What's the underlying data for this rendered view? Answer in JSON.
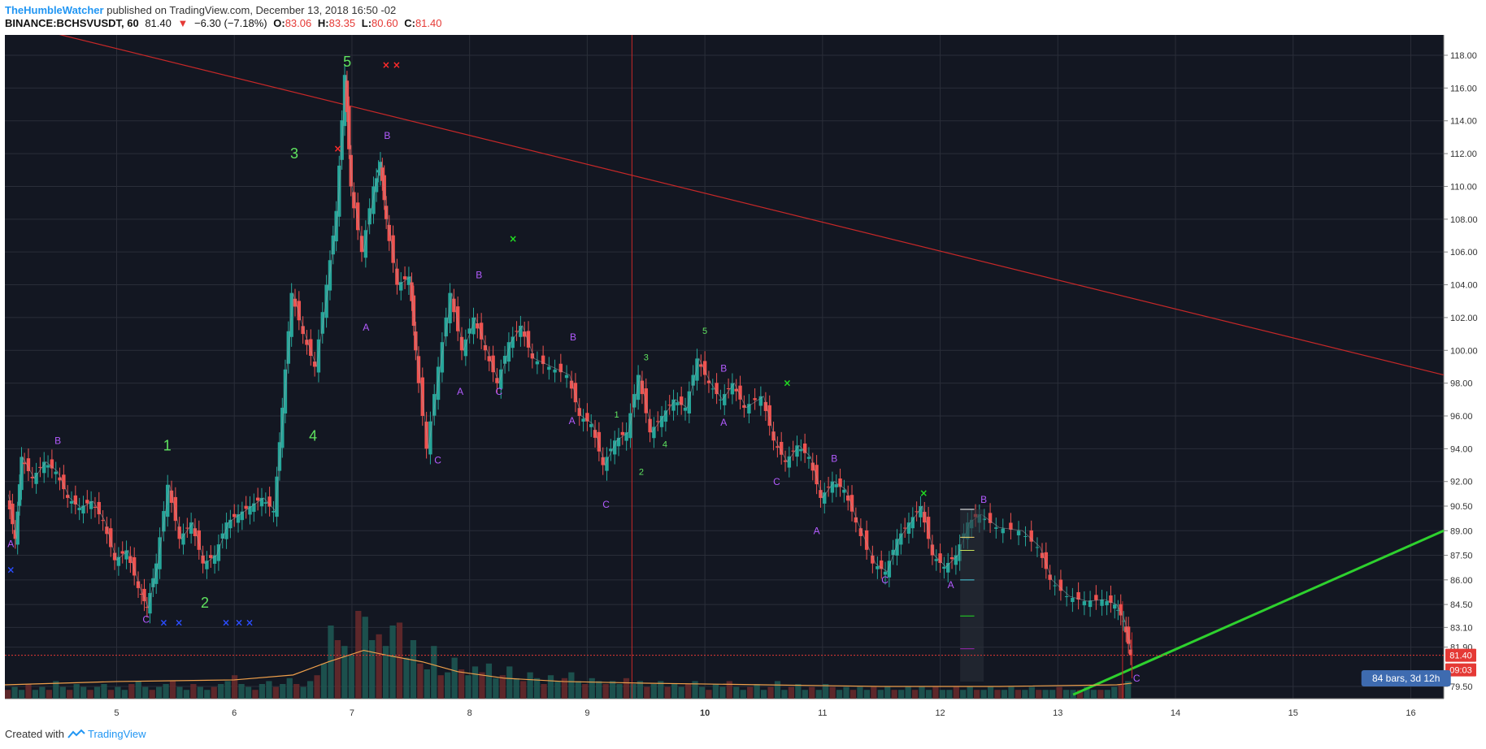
{
  "header": {
    "author": "TheHumbleWatcher",
    "published_text": "published on TradingView.com, December 13, 2018 16:50 -02",
    "symbol": "BINANCE:BCHSVUSDT, 60",
    "last": "81.40",
    "change_arrow": "▼",
    "change": "−6.30 (−7.18%)",
    "o_label": "O:",
    "o_value": "83.06",
    "h_label": "H:",
    "h_value": "83.35",
    "l_label": "L:",
    "l_value": "80.60",
    "c_label": "C:",
    "c_value": "81.40"
  },
  "footer": {
    "created_with": "Created with",
    "brand": "TradingView"
  },
  "chart_data": {
    "type": "candlestick",
    "colors": {
      "background": "#131722",
      "grid": "#2a2e39",
      "up": "#26a69a",
      "down": "#ef5350",
      "ma": "#f0a04b",
      "trendline_down": "#c62828",
      "trendline_up": "#2ed12e",
      "wave_purple": "#b35bff",
      "wave_green": "#5fe35f",
      "cross_red": "#ff2b2b",
      "cross_blue": "#2b4dff",
      "cross_green": "#22dd22",
      "label_bg": "#e53935",
      "range_badge": "#3e6bb0"
    },
    "y_axis": {
      "ticks": [
        "118.00",
        "116.00",
        "114.00",
        "112.00",
        "110.00",
        "108.00",
        "106.00",
        "104.00",
        "102.00",
        "100.00",
        "98.00",
        "96.00",
        "94.00",
        "92.00",
        "90.50",
        "89.00",
        "87.50",
        "86.00",
        "84.50",
        "83.10",
        "81.90",
        "79.50"
      ]
    },
    "x_axis": {
      "ticks": [
        "5",
        "6",
        "7",
        "8",
        "9",
        "10",
        "11",
        "12",
        "13",
        "14",
        "15",
        "16"
      ],
      "bold": [
        "10"
      ]
    },
    "last_price_label": "81.40",
    "countdown_label": "09:03",
    "range_badge": "84 bars, 3d 12h",
    "price_path": [
      [
        "4.08",
        91.2
      ],
      [
        "4.15",
        88.5
      ],
      [
        "4.2",
        93.5
      ],
      [
        "4.3",
        92.2
      ],
      [
        "4.4",
        93.2
      ],
      [
        "4.5",
        92.6
      ],
      [
        "4.6",
        91.0
      ],
      [
        "4.7",
        90.4
      ],
      [
        "4.8",
        90.8
      ],
      [
        "4.9",
        89.6
      ],
      [
        "5.0",
        87.2
      ],
      [
        "5.1",
        87.8
      ],
      [
        "5.2",
        85.5
      ],
      [
        "5.27",
        84.3
      ],
      [
        "5.35",
        87.0
      ],
      [
        "5.45",
        91.8
      ],
      [
        "5.55",
        88.5
      ],
      [
        "5.65",
        89.5
      ],
      [
        "5.75",
        87.0
      ],
      [
        "5.85",
        87.5
      ],
      [
        "5.95",
        89.5
      ],
      [
        "6.05",
        90.0
      ],
      [
        "6.15",
        90.5
      ],
      [
        "6.25",
        91.0
      ],
      [
        "6.35",
        90.2
      ],
      [
        "6.42",
        96.5
      ],
      [
        "6.5",
        103.5
      ],
      [
        "6.6",
        101.0
      ],
      [
        "6.7",
        99.0
      ],
      [
        "6.8",
        104.0
      ],
      [
        "6.88",
        108.5
      ],
      [
        "6.95",
        116.8
      ],
      [
        "7.0",
        110.0
      ],
      [
        "7.1",
        106.0
      ],
      [
        "7.2",
        110.0
      ],
      [
        "7.25",
        111.5
      ],
      [
        "7.3",
        108.0
      ],
      [
        "7.4",
        104.0
      ],
      [
        "7.5",
        104.5
      ],
      [
        "7.55",
        100.0
      ],
      [
        "7.65",
        94.0
      ],
      [
        "7.75",
        99.0
      ],
      [
        "7.85",
        103.5
      ],
      [
        "7.95",
        100.0
      ],
      [
        "8.05",
        102.0
      ],
      [
        "8.15",
        100.0
      ],
      [
        "8.25",
        98.0
      ],
      [
        "8.35",
        100.5
      ],
      [
        "8.45",
        101.5
      ],
      [
        "8.55",
        99.5
      ],
      [
        "8.7",
        99.0
      ],
      [
        "8.85",
        98.5
      ],
      [
        "8.95",
        96.0
      ],
      [
        "9.05",
        95.5
      ],
      [
        "9.15",
        93.0
      ],
      [
        "9.25",
        94.5
      ],
      [
        "9.35",
        95.0
      ],
      [
        "9.45",
        98.5
      ],
      [
        "9.55",
        95.0
      ],
      [
        "9.65",
        96.0
      ],
      [
        "9.75",
        97.0
      ],
      [
        "9.85",
        96.5
      ],
      [
        "9.95",
        99.5
      ],
      [
        "10.05",
        98.0
      ],
      [
        "10.15",
        97.0
      ],
      [
        "10.25",
        98.0
      ],
      [
        "10.35",
        96.5
      ],
      [
        "10.5",
        97.2
      ],
      [
        "10.6",
        94.5
      ],
      [
        "10.7",
        93.2
      ],
      [
        "10.8",
        94.2
      ],
      [
        "10.9",
        93.5
      ],
      [
        "11.0",
        91.0
      ],
      [
        "11.1",
        92.0
      ],
      [
        "11.2",
        91.5
      ],
      [
        "11.3",
        89.5
      ],
      [
        "11.45",
        87.0
      ],
      [
        "11.55",
        86.5
      ],
      [
        "11.65",
        88.5
      ],
      [
        "11.75",
        89.5
      ],
      [
        "11.85",
        90.5
      ],
      [
        "11.95",
        87.5
      ],
      [
        "12.05",
        86.8
      ],
      [
        "12.15",
        87.5
      ],
      [
        "12.25",
        89.5
      ],
      [
        "12.35",
        90.0
      ],
      [
        "12.5",
        89.2
      ],
      [
        "12.7",
        89.0
      ],
      [
        "12.85",
        88.0
      ],
      [
        "12.95",
        86.0
      ],
      [
        "13.1",
        85.0
      ],
      [
        "13.25",
        84.7
      ],
      [
        "13.4",
        84.8
      ],
      [
        "13.5",
        84.5
      ],
      [
        "13.57",
        83.5
      ],
      [
        "13.63",
        81.4
      ]
    ],
    "ma_path": [
      [
        "4.05",
        79.6
      ],
      [
        "5.0",
        79.8
      ],
      [
        "6.0",
        79.9
      ],
      [
        "6.5",
        80.2
      ],
      [
        "6.8",
        81.0
      ],
      [
        "7.1",
        81.7
      ],
      [
        "7.3",
        81.4
      ],
      [
        "7.6",
        81.0
      ],
      [
        "7.9",
        80.4
      ],
      [
        "8.3",
        80.0
      ],
      [
        "8.8",
        79.8
      ],
      [
        "9.5",
        79.7
      ],
      [
        "10.5",
        79.6
      ],
      [
        "11.5",
        79.5
      ],
      [
        "12.5",
        79.5
      ],
      [
        "13.5",
        79.6
      ],
      [
        "13.63",
        79.7
      ]
    ],
    "volume": [
      3,
      4,
      3,
      5,
      3,
      4,
      3,
      6,
      4,
      3,
      5,
      4,
      3,
      4,
      5,
      3,
      4,
      3,
      5,
      6,
      4,
      3,
      4,
      5,
      6,
      4,
      3,
      5,
      4,
      3,
      4,
      5,
      6,
      8,
      5,
      4,
      3,
      5,
      6,
      4,
      5,
      7,
      5,
      4,
      6,
      8,
      12,
      25,
      20,
      18,
      15,
      30,
      28,
      20,
      22,
      18,
      25,
      26,
      14,
      20,
      12,
      10,
      18,
      8,
      9,
      14,
      10,
      8,
      11,
      9,
      12,
      7,
      8,
      11,
      7,
      6,
      9,
      7,
      5,
      8,
      6,
      7,
      9,
      6,
      5,
      7,
      6,
      5,
      6,
      5,
      7,
      5,
      6,
      4,
      5,
      6,
      4,
      5,
      4,
      5,
      6,
      4,
      3,
      5,
      4,
      6,
      4,
      3,
      4,
      5,
      3,
      4,
      6,
      3,
      4,
      5,
      3,
      4,
      3,
      5,
      4,
      3,
      4,
      3,
      4,
      3,
      4,
      3,
      4,
      3,
      3,
      4,
      3,
      4,
      3,
      4,
      3,
      3,
      4,
      3,
      4,
      3,
      3,
      4,
      3,
      3,
      4,
      3,
      3,
      4,
      3,
      3,
      3,
      4,
      3,
      3,
      3,
      4,
      3,
      3,
      3,
      4,
      5,
      6
    ],
    "trendlines": [
      {
        "from": [
          "4.38",
          119.5
        ],
        "to": [
          "16.28",
          98.5
        ],
        "color": "trendline_down"
      },
      {
        "from": [
          "13.13",
          79.0
        ],
        "to": [
          "16.28",
          89.0
        ],
        "color": "trendline_up"
      }
    ],
    "vertical_line_x": "9.38",
    "wave_labels": [
      {
        "x": "4.1",
        "y": 88.0,
        "t": "A",
        "c": "wave_purple",
        "s": 12
      },
      {
        "x": "4.5",
        "y": 94.3,
        "t": "B",
        "c": "wave_purple",
        "s": 12
      },
      {
        "x": "5.25",
        "y": 83.4,
        "t": "C",
        "c": "wave_purple",
        "s": 12
      },
      {
        "x": "7.12",
        "y": 101.2,
        "t": "A",
        "c": "wave_purple",
        "s": 12
      },
      {
        "x": "7.3",
        "y": 112.9,
        "t": "B",
        "c": "wave_purple",
        "s": 12
      },
      {
        "x": "7.73",
        "y": 93.1,
        "t": "C",
        "c": "wave_purple",
        "s": 12
      },
      {
        "x": "7.92",
        "y": 97.3,
        "t": "A",
        "c": "wave_purple",
        "s": 12
      },
      {
        "x": "8.08",
        "y": 104.4,
        "t": "B",
        "c": "wave_purple",
        "s": 12
      },
      {
        "x": "8.25",
        "y": 97.3,
        "t": "C",
        "c": "wave_purple",
        "s": 12
      },
      {
        "x": "8.88",
        "y": 100.6,
        "t": "B",
        "c": "wave_purple",
        "s": 12
      },
      {
        "x": "8.87",
        "y": 95.5,
        "t": "A",
        "c": "wave_purple",
        "s": 12
      },
      {
        "x": "9.16",
        "y": 90.4,
        "t": "C",
        "c": "wave_purple",
        "s": 12
      },
      {
        "x": "10.16",
        "y": 98.7,
        "t": "B",
        "c": "wave_purple",
        "s": 12
      },
      {
        "x": "10.16",
        "y": 95.4,
        "t": "A",
        "c": "wave_purple",
        "s": 12
      },
      {
        "x": "10.61",
        "y": 91.8,
        "t": "C",
        "c": "wave_purple",
        "s": 12
      },
      {
        "x": "11.1",
        "y": 93.2,
        "t": "B",
        "c": "wave_purple",
        "s": 12
      },
      {
        "x": "10.95",
        "y": 88.8,
        "t": "A",
        "c": "wave_purple",
        "s": 12
      },
      {
        "x": "11.53",
        "y": 85.8,
        "t": "C",
        "c": "wave_purple",
        "s": 12
      },
      {
        "x": "12.09",
        "y": 85.5,
        "t": "A",
        "c": "wave_purple",
        "s": 12
      },
      {
        "x": "12.37",
        "y": 90.7,
        "t": "B",
        "c": "wave_purple",
        "s": 12
      },
      {
        "x": "13.67",
        "y": 79.8,
        "t": "C",
        "c": "wave_purple",
        "s": 12
      },
      {
        "x": "5.43",
        "y": 93.9,
        "t": "1",
        "c": "wave_green",
        "s": 18
      },
      {
        "x": "5.75",
        "y": 84.3,
        "t": "2",
        "c": "wave_green",
        "s": 18
      },
      {
        "x": "6.51",
        "y": 111.7,
        "t": "3",
        "c": "wave_green",
        "s": 18
      },
      {
        "x": "6.67",
        "y": 94.5,
        "t": "4",
        "c": "wave_green",
        "s": 18
      },
      {
        "x": "6.96",
        "y": 117.3,
        "t": "5",
        "c": "wave_green",
        "s": 18
      },
      {
        "x": "9.25",
        "y": 95.9,
        "t": "1",
        "c": "wave_green",
        "s": 11
      },
      {
        "x": "9.46",
        "y": 92.4,
        "t": "2",
        "c": "wave_green",
        "s": 11
      },
      {
        "x": "9.5",
        "y": 99.4,
        "t": "3",
        "c": "wave_green",
        "s": 11
      },
      {
        "x": "9.66",
        "y": 94.1,
        "t": "4",
        "c": "wave_green",
        "s": 11
      },
      {
        "x": "10.0",
        "y": 101.0,
        "t": "5",
        "c": "wave_green",
        "s": 11
      }
    ],
    "crosses": [
      {
        "x": "4.1",
        "y": 86.6,
        "c": "cross_blue"
      },
      {
        "x": "5.4",
        "y": 83.4,
        "c": "cross_blue"
      },
      {
        "x": "5.53",
        "y": 83.4,
        "c": "cross_blue"
      },
      {
        "x": "5.93",
        "y": 83.4,
        "c": "cross_blue"
      },
      {
        "x": "6.04",
        "y": 83.4,
        "c": "cross_blue"
      },
      {
        "x": "6.13",
        "y": 83.4,
        "c": "cross_blue"
      },
      {
        "x": "6.88",
        "y": 112.3,
        "c": "cross_red"
      },
      {
        "x": "7.29",
        "y": 117.4,
        "c": "cross_red"
      },
      {
        "x": "7.38",
        "y": 117.4,
        "c": "cross_red"
      },
      {
        "x": "8.37",
        "y": 106.8,
        "c": "cross_green"
      },
      {
        "x": "10.7",
        "y": 98.0,
        "c": "cross_green"
      },
      {
        "x": "11.86",
        "y": 91.3,
        "c": "cross_green"
      }
    ]
  }
}
